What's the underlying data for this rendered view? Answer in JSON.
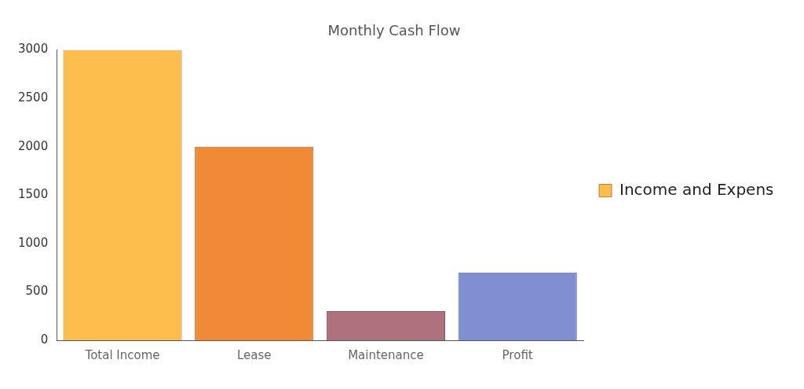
{
  "chart_data": {
    "type": "bar",
    "title": "Monthly Cash Flow",
    "categories": [
      "Total Income",
      "Lease",
      "Maintenance",
      "Profit"
    ],
    "series": [
      {
        "name": "Income and Expenses",
        "values": [
          3000,
          2000,
          300,
          700
        ]
      }
    ],
    "colors": [
      "#fdbd4d",
      "#f08a36",
      "#b0717e",
      "#7f8fd2"
    ],
    "ylim": [
      0,
      3000
    ],
    "yticks": [
      0,
      500,
      1000,
      1500,
      2000,
      2500,
      3000
    ],
    "grid": false,
    "legend": "right"
  }
}
